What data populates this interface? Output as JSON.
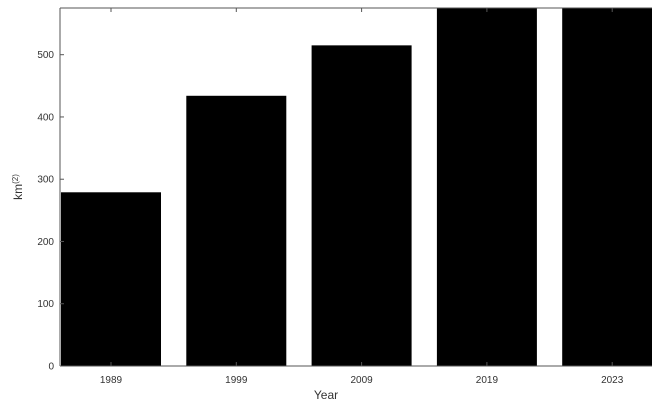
{
  "chart_data": {
    "type": "bar",
    "categories": [
      "1989",
      "1999",
      "2009",
      "2019",
      "2023"
    ],
    "values": [
      279,
      434,
      515,
      575,
      575
    ],
    "xlabel": "Year",
    "ylabel": "km^{2}",
    "ylim": [
      0,
      575
    ],
    "yticks": [
      0,
      100,
      200,
      300,
      400,
      500
    ],
    "grid": false,
    "bar_color": "#000000",
    "axis_color": "#555555"
  }
}
